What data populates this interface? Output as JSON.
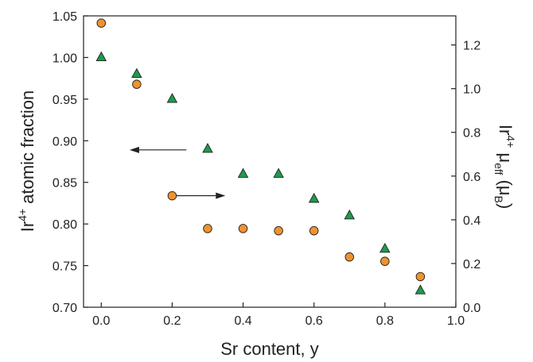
{
  "chart_data": {
    "type": "scatter",
    "title": "",
    "xlabel": "Sr content, y",
    "ylabel_left": {
      "main": "Ir",
      "sup": "4+",
      "rest": " atomic fraction"
    },
    "ylabel_right": {
      "main": "Ir",
      "sup": "4+",
      "mu": " μ",
      "sub": "eff",
      "paren": " (μ",
      "sub2": "B",
      "close": ")"
    },
    "xlim": [
      -0.05,
      1.0
    ],
    "ylim_left": [
      0.7,
      1.05
    ],
    "ylim_right": [
      0.0,
      1.333
    ],
    "x_ticks": [
      "0.0",
      "0.2",
      "0.4",
      "0.6",
      "0.8",
      "1.0"
    ],
    "y_left_ticks": [
      "0.70",
      "0.75",
      "0.80",
      "0.85",
      "0.90",
      "0.95",
      "1.00",
      "1.05"
    ],
    "y_right_ticks": [
      "0.0",
      "0.2",
      "0.4",
      "0.6",
      "0.8",
      "1.0",
      "1.2"
    ],
    "grid": false,
    "series": [
      {
        "marker": "triangle",
        "axis": "left",
        "color": "#1f9a4c",
        "x": [
          0.0,
          0.1,
          0.2,
          0.3,
          0.4,
          0.5,
          0.6,
          0.7,
          0.8,
          0.9
        ],
        "y": [
          1.0,
          0.98,
          0.95,
          0.89,
          0.86,
          0.86,
          0.83,
          0.81,
          0.77,
          0.72
        ]
      },
      {
        "marker": "circle",
        "axis": "right",
        "color": "#f0932e",
        "x": [
          0.0,
          0.1,
          0.2,
          0.3,
          0.4,
          0.5,
          0.6,
          0.7,
          0.8,
          0.9
        ],
        "y": [
          1.3,
          1.02,
          0.51,
          0.36,
          0.36,
          0.35,
          0.35,
          0.23,
          0.21,
          0.14
        ]
      }
    ],
    "arrows": [
      {
        "points_to": "left",
        "x_from": 0.24,
        "x_to": 0.08,
        "y_left": 0.889
      },
      {
        "points_to": "right",
        "x_from": 0.21,
        "x_to": 0.35,
        "y_left": 0.834
      }
    ]
  }
}
